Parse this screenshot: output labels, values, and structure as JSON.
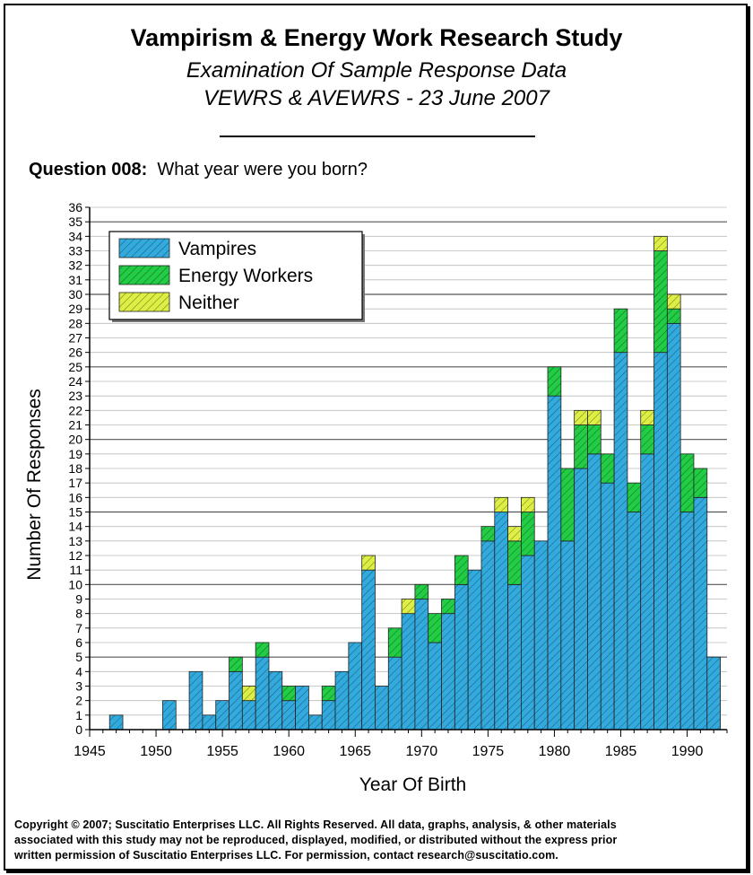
{
  "header": {
    "title": "Vampirism & Energy Work Research Study",
    "subtitle": "Examination Of Sample Response Data",
    "subtitle2": "VEWRS & AVEWRS - 23 June 2007"
  },
  "question": {
    "number": "Question 008",
    "separator": ":",
    "text": "What year were you born?"
  },
  "copyright": {
    "line1": "Copyright © 2007; Suscitatio Enterprises LLC.  All Rights Reserved.  All data, graphs, analysis, & other materials",
    "line2": "associated with this study may not be reproduced, displayed, modified, or distributed without the express prior",
    "line3": "written permission of Suscitatio Enterprises LLC.  For permission, contact research@suscitatio.com."
  },
  "colors": {
    "vampires": "#33aadd",
    "energy_workers": "#22cc44",
    "neither": "#ddee44",
    "grid": "#888888"
  },
  "chart_data": {
    "type": "bar",
    "stacked": true,
    "xlabel": "Year Of Birth",
    "ylabel": "Number Of Responses",
    "xlim": [
      1945,
      1993
    ],
    "ylim": [
      0,
      36
    ],
    "x_ticks": [
      1945,
      1950,
      1955,
      1960,
      1965,
      1970,
      1975,
      1980,
      1985,
      1990
    ],
    "y_ticks": [
      0,
      1,
      2,
      3,
      4,
      5,
      6,
      7,
      8,
      9,
      10,
      11,
      12,
      13,
      14,
      15,
      16,
      17,
      18,
      19,
      20,
      21,
      22,
      23,
      24,
      25,
      26,
      27,
      28,
      29,
      30,
      31,
      32,
      33,
      34,
      35,
      36
    ],
    "legend_position": "top-left",
    "grid": "horizontal",
    "x": [
      1947,
      1948,
      1949,
      1950,
      1951,
      1952,
      1953,
      1954,
      1955,
      1956,
      1957,
      1958,
      1959,
      1960,
      1961,
      1962,
      1963,
      1964,
      1965,
      1966,
      1967,
      1968,
      1969,
      1970,
      1971,
      1972,
      1973,
      1974,
      1975,
      1976,
      1977,
      1978,
      1979,
      1980,
      1981,
      1982,
      1983,
      1984,
      1985,
      1986,
      1987,
      1988,
      1989,
      1990,
      1991,
      1992
    ],
    "series": [
      {
        "name": "Vampires",
        "values": [
          1,
          0,
          0,
          0,
          2,
          0,
          4,
          1,
          2,
          4,
          2,
          5,
          4,
          2,
          3,
          1,
          2,
          4,
          6,
          11,
          3,
          5,
          8,
          9,
          6,
          8,
          10,
          11,
          13,
          15,
          10,
          12,
          13,
          23,
          13,
          18,
          19,
          17,
          26,
          15,
          19,
          26,
          28,
          15,
          16,
          5
        ]
      },
      {
        "name": "Energy Workers",
        "values": [
          0,
          0,
          0,
          0,
          0,
          0,
          0,
          0,
          0,
          1,
          0,
          1,
          0,
          1,
          0,
          0,
          1,
          0,
          0,
          0,
          0,
          2,
          0,
          1,
          2,
          1,
          2,
          0,
          1,
          0,
          3,
          3,
          0,
          2,
          5,
          3,
          2,
          2,
          3,
          2,
          2,
          7,
          1,
          4,
          2,
          0
        ]
      },
      {
        "name": "Neither",
        "values": [
          0,
          0,
          0,
          0,
          0,
          0,
          0,
          0,
          0,
          0,
          1,
          0,
          0,
          0,
          0,
          0,
          0,
          0,
          0,
          1,
          0,
          0,
          1,
          0,
          0,
          0,
          0,
          0,
          0,
          1,
          1,
          1,
          0,
          0,
          0,
          1,
          1,
          0,
          0,
          0,
          1,
          1,
          1,
          0,
          0,
          0
        ]
      }
    ]
  }
}
